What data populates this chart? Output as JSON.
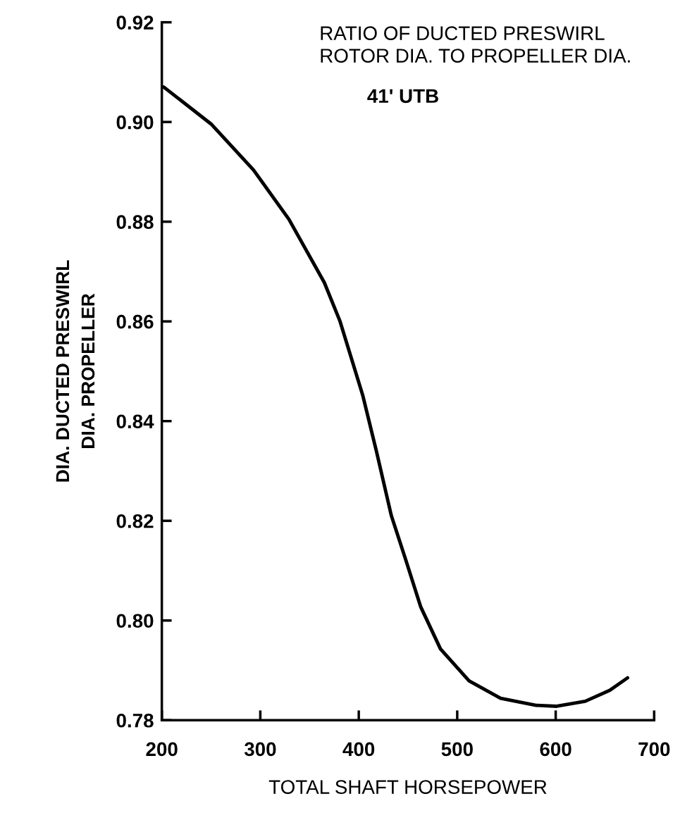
{
  "chart_data": {
    "type": "line",
    "title": "RATIO OF DUCTED PRESWIRL\nROTOR DIA. TO PROPELLER DIA.",
    "subtitle": "41' UTB",
    "xlabel": "TOTAL SHAFT HORSEPOWER",
    "ylabel": "DIA. DUCTED PRESWIRL\nDIA. PROPELLER",
    "series": [
      {
        "color": "#000000",
        "x": [
          202,
          250,
          293,
          329,
          365,
          381,
          404,
          418,
          433,
          447,
          463,
          483,
          512,
          544,
          580,
          601,
          630,
          655,
          673
        ],
        "values": [
          0.907,
          0.8996,
          0.8904,
          0.8805,
          0.8678,
          0.86,
          0.8452,
          0.8339,
          0.8211,
          0.8126,
          0.8027,
          0.7943,
          0.7879,
          0.7844,
          0.783,
          0.7828,
          0.7838,
          0.786,
          0.7885
        ]
      }
    ],
    "xlim": [
      200,
      700
    ],
    "xticks": [
      200,
      300,
      400,
      500,
      600,
      700
    ],
    "ylim": [
      0.78,
      0.92
    ],
    "yticks": [
      0.78,
      {
        "value": 0.8,
        "label": "0.80"
      },
      0.82,
      0.84,
      0.86,
      0.88,
      {
        "value": 0.9,
        "label": "0.90"
      },
      0.92
    ],
    "grid": false,
    "legend": false,
    "marker": "none",
    "line_style": "solid"
  }
}
